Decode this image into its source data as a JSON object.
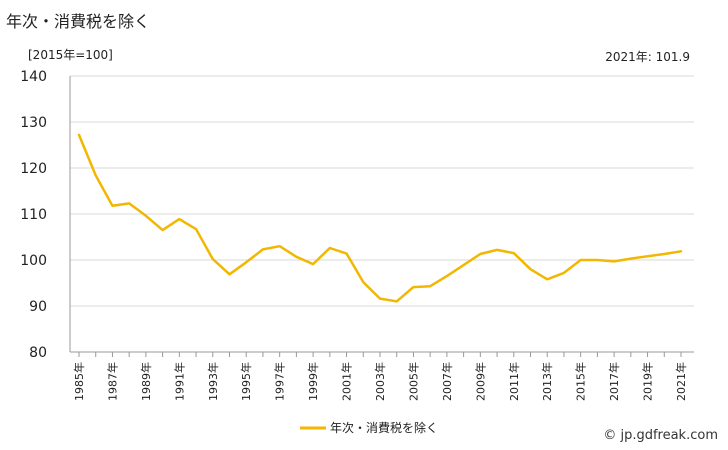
{
  "title": "年次・消費税を除く",
  "unit_label": "[2015年=100]",
  "latest_label": "2021年: 101.9",
  "watermark": "© jp.gdfreak.com",
  "chart_data": {
    "type": "line",
    "title": "年次・消費税を除く",
    "ylabel": "[2015年=100]",
    "ylim": [
      80,
      140
    ],
    "yticks": [
      80,
      90,
      100,
      110,
      120,
      130,
      140
    ],
    "legend_position": "bottom",
    "grid": true,
    "color": "#f2b700",
    "x": [
      "1985年",
      "1986年",
      "1987年",
      "1988年",
      "1989年",
      "1990年",
      "1991年",
      "1992年",
      "1993年",
      "1994年",
      "1995年",
      "1996年",
      "1997年",
      "1998年",
      "1999年",
      "2000年",
      "2001年",
      "2002年",
      "2003年",
      "2004年",
      "2005年",
      "2006年",
      "2007年",
      "2008年",
      "2009年",
      "2010年",
      "2011年",
      "2012年",
      "2013年",
      "2014年",
      "2015年",
      "2016年",
      "2017年",
      "2018年",
      "2019年",
      "2020年",
      "2021年"
    ],
    "x_tick_labels": [
      "1985年",
      "1987年",
      "1989年",
      "1991年",
      "1993年",
      "1995年",
      "1997年",
      "1999年",
      "2001年",
      "2003年",
      "2005年",
      "2007年",
      "2009年",
      "2011年",
      "2013年",
      "2015年",
      "2017年",
      "2019年",
      "2021年"
    ],
    "series": [
      {
        "name": "年次・消費税を除く",
        "values": [
          127.2,
          118.4,
          111.8,
          112.3,
          109.6,
          106.5,
          108.9,
          106.7,
          100.2,
          96.9,
          99.5,
          102.3,
          103.0,
          100.7,
          99.1,
          102.6,
          101.4,
          95.2,
          91.6,
          91.0,
          94.1,
          94.3,
          96.5,
          98.9,
          101.3,
          102.2,
          101.5,
          98.0,
          95.8,
          97.2,
          100.0,
          100.0,
          99.7,
          100.3,
          100.8,
          101.3,
          101.9
        ]
      }
    ]
  }
}
